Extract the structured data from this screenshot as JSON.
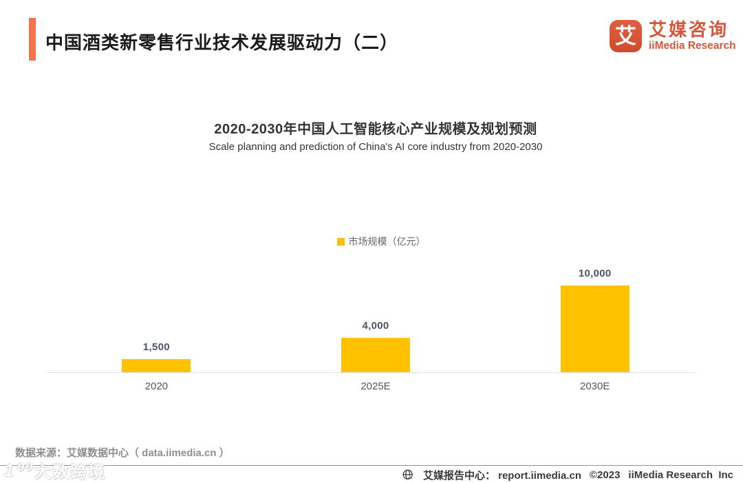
{
  "page": {
    "header": {
      "title": "中国酒类新零售行业技术发展驱动力（二）"
    },
    "logo": {
      "icon_char": "艾",
      "name_cn": "艾媒咨询",
      "name_en": "iiMedia Research"
    },
    "chart_head": {
      "title": "2020-2030年中国人工智能核心产业规模及规划预测",
      "subtitle": "Scale planning and prediction of China's AI core industry from 2020-2030",
      "legend_label": "市场规模（亿元）"
    },
    "source": "数据来源：艾媒数据中心（ data.iimedia.cn ）",
    "watermark": {
      "prefix": "1⁰⁰",
      "text": "大数跨境"
    },
    "footer": {
      "report_center": "艾媒报告中心： report.iimedia.cn",
      "copyright": "©2023",
      "company": "iiMedia Research  Inc"
    },
    "colors": {
      "accent_orange": "#F4724C",
      "logo_vermillion": "#D5573B",
      "bar_yellow": "#FFC100",
      "legend_yellow": "#FBBC16"
    }
  },
  "chart_data": {
    "type": "bar",
    "title": "2020-2030年中国人工智能核心产业规模及规划预测",
    "subtitle": "Scale planning and prediction of China's AI core industry from 2020-2030",
    "series_name": "市场规模（亿元）",
    "categories": [
      "2020",
      "2025E",
      "2030E"
    ],
    "values": [
      1500,
      4000,
      10000
    ],
    "value_labels": [
      "1,500",
      "4,000",
      "10,000"
    ],
    "unit": "亿元",
    "ylim": [
      0,
      10000
    ],
    "bar_color": "#FFC100",
    "grid": false,
    "legend_position": "top-center"
  }
}
